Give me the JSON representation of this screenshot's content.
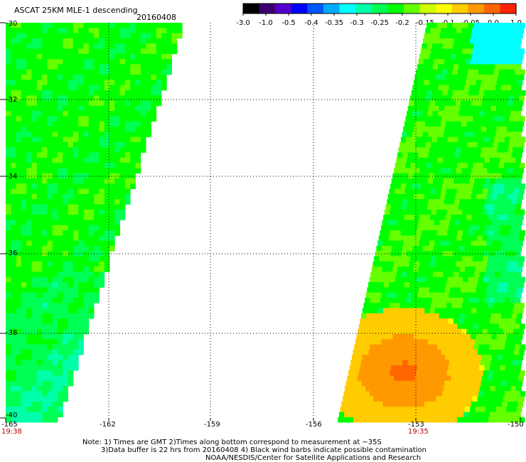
{
  "title": "ASCAT 25KM MLE-1 descending",
  "date": "20160408",
  "colorbar": {
    "ticks": [
      "-3.0",
      "-1.0",
      "-0.5",
      "-0.4",
      "-0.35",
      "-0.3",
      "-0.25",
      "-0.2",
      "-0.15",
      "-0.1",
      "-0.05",
      "0.0",
      "1.0"
    ],
    "colors": [
      "#000000",
      "#3a0070",
      "#5500cc",
      "#0000ff",
      "#0055ff",
      "#00aaff",
      "#00ffff",
      "#00ffaa",
      "#00ff55",
      "#00ff00",
      "#66ff00",
      "#ccff00",
      "#ffff00",
      "#ffcc00",
      "#ff9900",
      "#ff6600",
      "#ff2200"
    ]
  },
  "lat_labels": [
    "-30",
    "-32",
    "-34",
    "-36",
    "-38",
    "-40"
  ],
  "lon_labels": [
    "-165",
    "-162",
    "-159",
    "-156",
    "-153",
    "-150"
  ],
  "times": {
    "left": "19:38",
    "right": "19:35"
  },
  "notes": {
    "line1": "Note: 1) Times are GMT 2)Times along bottom correspond to measurement at ~35S",
    "line2": "3)Data buffer is 22 hrs from 20160408 4) Black wind barbs indicate possible contamination",
    "line3": "NOAA/NESDIS/Center for Satellite Applications and Research"
  }
}
